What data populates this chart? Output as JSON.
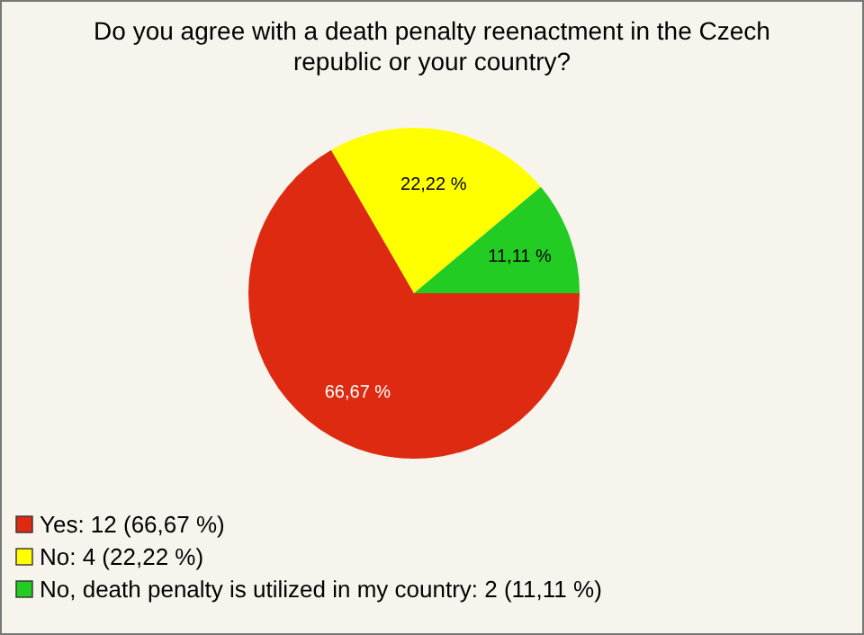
{
  "chart_data": {
    "type": "pie",
    "title": "Do you agree with a death penalty reenactment in the Czech republic or your country?",
    "categories": [
      "Yes: 12 (66,67 %)",
      "No: 4 (22,22 %)",
      "No, death penalty is utilized in my country: 2 (11,11 %)"
    ],
    "values": [
      66.67,
      22.22,
      11.11
    ],
    "value_labels": [
      "66,67 %",
      "22,22 %",
      "11,11 %"
    ],
    "colors": [
      "#dd2a10",
      "#ffff00",
      "#22cc22"
    ],
    "legend": "bottom left"
  }
}
